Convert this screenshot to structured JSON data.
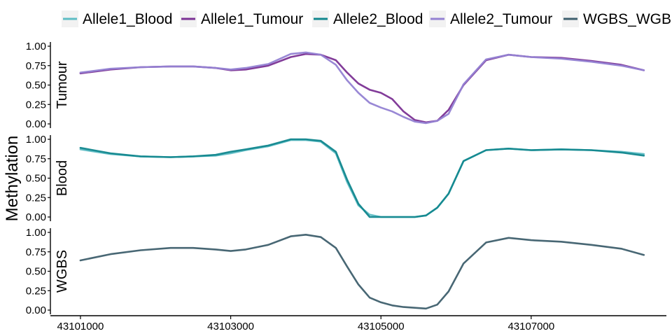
{
  "chart_data": {
    "type": "line",
    "ylabel": "Methylation",
    "xlabel": "",
    "xlim": [
      43100600,
      43108800
    ],
    "ylim": [
      0,
      1
    ],
    "x_ticks": [
      43101000,
      43103000,
      43105000,
      43107000
    ],
    "x_tick_labels": [
      "43101000",
      "43103000",
      "43105000",
      "43107000"
    ],
    "y_ticks": [
      0,
      0.25,
      0.5,
      0.75,
      1
    ],
    "y_tick_labels": [
      "0.00",
      "0.25",
      "0.50",
      "0.75",
      "1.00"
    ],
    "legend": {
      "placement": "top",
      "entries": [
        {
          "name": "Allele1_Blood",
          "color": "#5dbcc4"
        },
        {
          "name": "Allele1_Tumour",
          "color": "#7b3294"
        },
        {
          "name": "Allele2_Blood",
          "color": "#12878e"
        },
        {
          "name": "Allele2_Tumour",
          "color": "#9482d3"
        },
        {
          "name": "WGBS_WGBS",
          "color": "#3e5f6d"
        }
      ]
    },
    "x": [
      43101000,
      43101400,
      43101800,
      43102200,
      43102500,
      43102800,
      43103000,
      43103200,
      43103500,
      43103800,
      43104000,
      43104200,
      43104400,
      43104550,
      43104700,
      43104850,
      43105000,
      43105150,
      43105300,
      43105450,
      43105600,
      43105750,
      43105900,
      43106100,
      43106400,
      43106700,
      43107000,
      43107400,
      43107800,
      43108200,
      43108500
    ],
    "panels": [
      {
        "name": "Tumour",
        "series": [
          {
            "name": "Allele1_Tumour",
            "color": "#7b3294",
            "values": [
              0.65,
              0.7,
              0.73,
              0.74,
              0.74,
              0.72,
              0.69,
              0.7,
              0.75,
              0.86,
              0.9,
              0.89,
              0.82,
              0.66,
              0.52,
              0.44,
              0.4,
              0.32,
              0.16,
              0.05,
              0.02,
              0.04,
              0.18,
              0.5,
              0.82,
              0.89,
              0.86,
              0.85,
              0.81,
              0.76,
              0.69
            ]
          },
          {
            "name": "Allele2_Tumour",
            "color": "#9482d3",
            "values": [
              0.66,
              0.71,
              0.73,
              0.74,
              0.74,
              0.72,
              0.7,
              0.72,
              0.77,
              0.9,
              0.92,
              0.89,
              0.76,
              0.56,
              0.4,
              0.27,
              0.21,
              0.16,
              0.09,
              0.03,
              0.01,
              0.04,
              0.13,
              0.51,
              0.83,
              0.89,
              0.86,
              0.84,
              0.8,
              0.75,
              0.69
            ]
          }
        ]
      },
      {
        "name": "Blood",
        "series": [
          {
            "name": "Allele1_Blood",
            "color": "#5dbcc4",
            "values": [
              0.87,
              0.81,
              0.78,
              0.77,
              0.78,
              0.79,
              0.82,
              0.86,
              0.91,
              0.99,
              0.99,
              0.97,
              0.82,
              0.45,
              0.15,
              0.03,
              0.0,
              0.0,
              0.0,
              0.0,
              0.02,
              0.12,
              0.3,
              0.72,
              0.86,
              0.88,
              0.86,
              0.87,
              0.86,
              0.84,
              0.81
            ]
          },
          {
            "name": "Allele2_Blood",
            "color": "#12878e",
            "values": [
              0.89,
              0.82,
              0.78,
              0.77,
              0.78,
              0.8,
              0.84,
              0.87,
              0.92,
              1.0,
              1.0,
              0.98,
              0.84,
              0.48,
              0.17,
              0.0,
              0.0,
              0.0,
              0.0,
              0.0,
              0.02,
              0.12,
              0.3,
              0.72,
              0.86,
              0.88,
              0.86,
              0.87,
              0.86,
              0.83,
              0.79
            ]
          }
        ]
      },
      {
        "name": "WGBS",
        "series": [
          {
            "name": "WGBS_WGBS",
            "color": "#3e5f6d",
            "values": [
              0.64,
              0.72,
              0.77,
              0.8,
              0.8,
              0.78,
              0.76,
              0.78,
              0.84,
              0.95,
              0.97,
              0.94,
              0.8,
              0.56,
              0.33,
              0.16,
              0.1,
              0.06,
              0.04,
              0.03,
              0.02,
              0.07,
              0.24,
              0.6,
              0.87,
              0.93,
              0.9,
              0.88,
              0.84,
              0.79,
              0.71
            ]
          }
        ]
      }
    ]
  }
}
